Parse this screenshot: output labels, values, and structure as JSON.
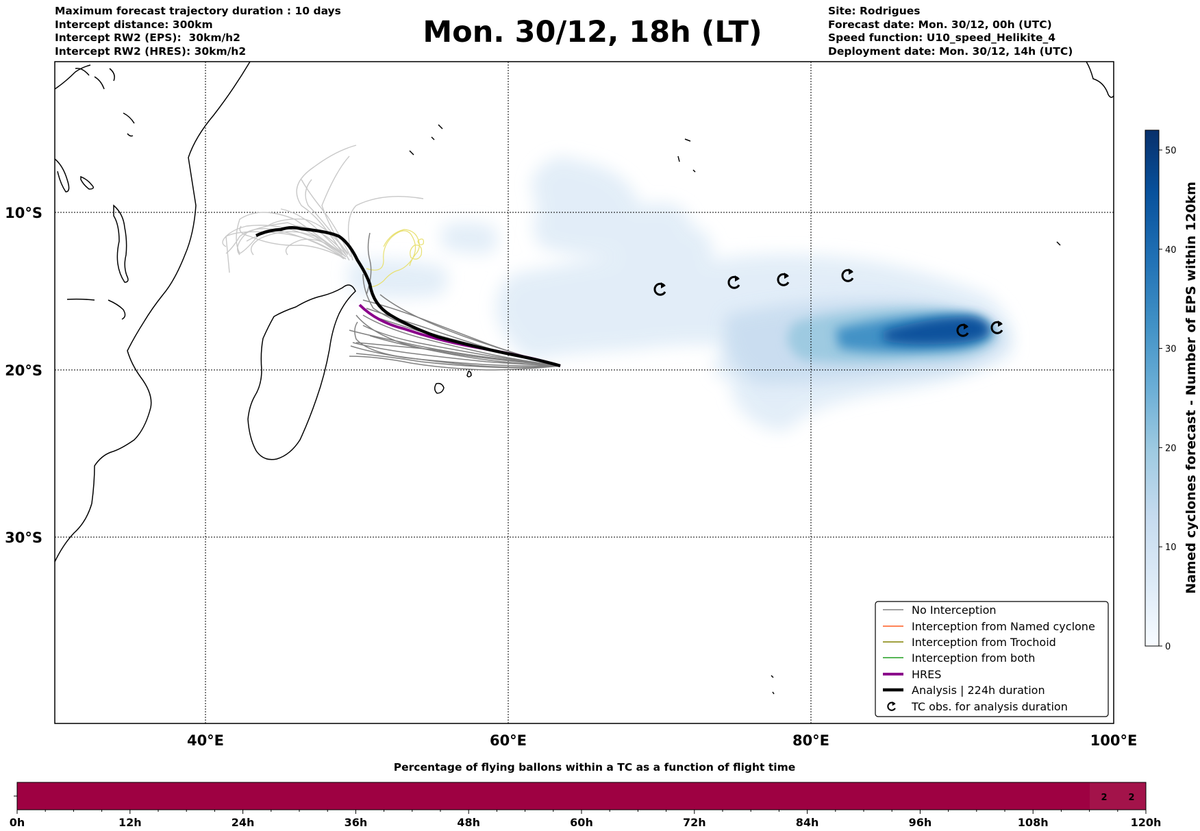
{
  "title": "Mon. 30/12, 18h (LT)",
  "header_left": [
    "Maximum forecast trajectory duration : 10 days",
    "Intercept distance: 300km",
    "Intercept RW2 (EPS):  30km/h2",
    "Intercept RW2 (HRES): 30km/h2"
  ],
  "header_right": [
    "Site: Rodrigues",
    "Forecast date: Mon. 30/12, 00h (UTC)",
    "Speed function: U10_speed_Helikite_4",
    "Deployment date: Mon. 30/12, 14h (UTC)"
  ],
  "map": {
    "lat_labels": [
      "10°S",
      "20°S",
      "30°S"
    ],
    "lon_labels": [
      "40°E",
      "60°E",
      "80°E",
      "100°E"
    ],
    "colors": {
      "no_interception": "#808080",
      "named_cyclone": "#ff5a1f",
      "trochoid": "#808000",
      "both": "#1e9e1e",
      "hres": "#8b008b",
      "analysis": "#000000",
      "ensemble_light": "#c8c8c8",
      "yellow_tracks": "#e8e070"
    },
    "tc_obs_count": 6
  },
  "legend": {
    "items": [
      {
        "label": "No Interception",
        "icon": "thin-gray-line"
      },
      {
        "label": "Interception from Named cyclone",
        "icon": "thin-orange-line"
      },
      {
        "label": "Interception from Trochoid",
        "icon": "thin-olive-line"
      },
      {
        "label": "Interception from both",
        "icon": "thin-green-line"
      },
      {
        "label": "HRES",
        "icon": "thick-purple-line"
      },
      {
        "label": "Analysis | 224h duration",
        "icon": "thick-black-line"
      },
      {
        "label": "TC obs. for analysis duration",
        "icon": "cyclone-symbol-icon"
      }
    ]
  },
  "colorbar": {
    "label": "Named cyclones forecast - Number of EPS within 120km",
    "ticks": [
      "0",
      "10",
      "20",
      "30",
      "40",
      "50"
    ],
    "min": 0,
    "max": 52,
    "colors": [
      "#f7fbff",
      "#deebf7",
      "#c6dbef",
      "#9ecae1",
      "#6baed6",
      "#4292c6",
      "#2171b5",
      "#08519c",
      "#08306b"
    ]
  },
  "bottom_bar": {
    "title": "Percentage of flying ballons within a TC as a function of flight time",
    "ticks": [
      "0h",
      "12h",
      "24h",
      "36h",
      "48h",
      "60h",
      "72h",
      "84h",
      "96h",
      "108h",
      "120h"
    ],
    "color": "#9e0142",
    "labeled_cells": [
      "2",
      "2"
    ]
  }
}
